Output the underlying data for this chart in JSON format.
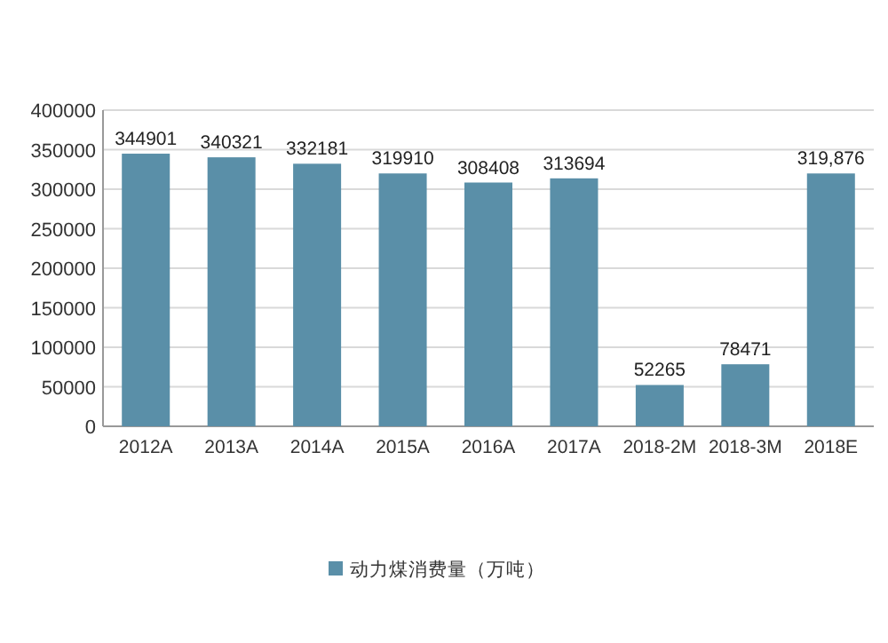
{
  "chart_data": {
    "type": "bar",
    "categories": [
      "2012A",
      "2013A",
      "2014A",
      "2015A",
      "2016A",
      "2017A",
      "2018-2M",
      "2018-3M",
      "2018E"
    ],
    "series": [
      {
        "name": "动力煤消费量（万吨）",
        "color": "#5a8fa8",
        "values": [
          344901,
          340321,
          332181,
          319910,
          308408,
          313694,
          52265,
          78471,
          319876
        ],
        "value_labels": [
          "344901",
          "340321",
          "332181",
          "319910",
          "308408",
          "313694",
          "52265",
          "78471",
          "319,876"
        ]
      }
    ],
    "ylim": [
      0,
      400000
    ],
    "yticks": [
      0,
      50000,
      100000,
      150000,
      200000,
      250000,
      300000,
      350000,
      400000
    ],
    "grid": "y",
    "legend": "bottom"
  }
}
